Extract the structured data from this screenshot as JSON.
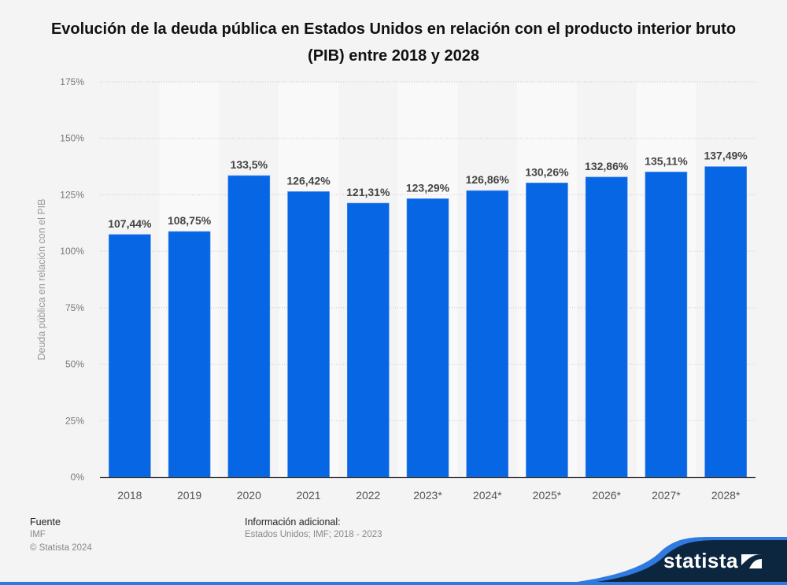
{
  "chart_data": {
    "type": "bar",
    "title": "Evolución de la deuda pública en Estados Unidos en relación con el producto interior bruto (PIB) entre 2018 y 2028",
    "xlabel": "",
    "ylabel": "Deuda pública en relación con el PIB",
    "categories": [
      "2018",
      "2019",
      "2020",
      "2021",
      "2022",
      "2023*",
      "2024*",
      "2025*",
      "2026*",
      "2027*",
      "2028*"
    ],
    "values": [
      107.44,
      108.75,
      133.5,
      126.42,
      121.31,
      123.29,
      126.86,
      130.26,
      132.86,
      135.11,
      137.49
    ],
    "data_labels": [
      "107,44%",
      "108,75%",
      "133,5%",
      "126,42%",
      "121,31%",
      "123,29%",
      "126,86%",
      "130,26%",
      "132,86%",
      "135,11%",
      "137,49%"
    ],
    "ylim": [
      0,
      175
    ],
    "yticks": [
      0,
      25,
      50,
      75,
      100,
      125,
      150,
      175
    ],
    "ytick_labels": [
      "0%",
      "25%",
      "50%",
      "75%",
      "100%",
      "125%",
      "150%",
      "175%"
    ],
    "grid": true,
    "legend": "none",
    "bar_color": "#0766e3"
  },
  "footer": {
    "source_heading": "Fuente",
    "source": "IMF",
    "copyright": "© Statista 2024",
    "info_heading": "Información adicional:",
    "info": "Estados Unidos; IMF; 2018 - 2023"
  },
  "brand": {
    "name": "statista",
    "dark_color": "#0d2640",
    "accent_color": "#2f7ae0"
  }
}
